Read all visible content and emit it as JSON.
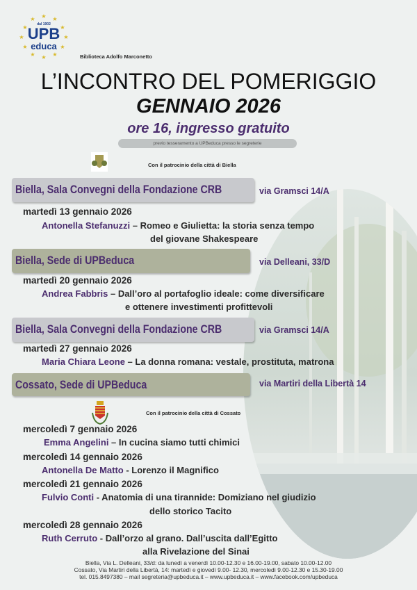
{
  "logo": {
    "since": "dal 1902",
    "line1": "UPB",
    "line2": "educa"
  },
  "library": "Biblioteca Adolfo Marconetto",
  "title": "L’INCONTRO DEL POMERIGGIO",
  "month": "GENNAIO 2026",
  "time": "ore 16, ingresso gratuito",
  "note": "previo tesseramento a UPBeduca presso le segreterie",
  "patronage_biella": "Con il patrocinio della città di Biella",
  "patronage_cossato": "Con il patrocinio della città di Cossato",
  "venues": [
    {
      "name": "Biella, Sala Convegni della Fondazione CRB",
      "address": "via Gramsci 14/A"
    },
    {
      "name": "Biella, Sede di UPBeduca",
      "address": "via  Delleani, 33/D"
    },
    {
      "name": "Biella, Sala Convegni della Fondazione CRB",
      "address": "via Gramsci 14/A"
    },
    {
      "name": "Cossato, Sede di UPBeduca",
      "address": "via  Martiri della Libertà 14"
    }
  ],
  "events": [
    {
      "date": "martedì 13 gennaio 2026",
      "speaker": "Antonella Stefanuzzi",
      "title": " – Romeo e Giulietta: la storia senza tempo",
      "title2": "del  giovane Shakespeare"
    },
    {
      "date": "martedì 20 gennaio 2026",
      "speaker": "Andrea Fabbris",
      "title": " – Dall’oro al portafoglio ideale: come diversificare",
      "title2": "e  ottenere investimenti profittevoli"
    },
    {
      "date": "martedì 27 gennaio 2026",
      "speaker": "Maria Chiara Leone",
      "title": " – La donna romana: vestale, prostituta, matrona"
    },
    {
      "date": "mercoledì 7 gennaio 2026",
      "speaker": "Emma Angelini",
      "title": " – In cucina siamo tutti chimici"
    },
    {
      "date": "mercoledì 14 gennaio 2026",
      "speaker": "Antonella De Matto",
      "title": " - Lorenzo il Magnifico"
    },
    {
      "date": "mercoledì 21 gennaio 2026",
      "speaker": "Fulvio Conti",
      "title": " - Anatomia di una tirannide: Domiziano nel giudizio",
      "title2": "dello storico Tacito"
    },
    {
      "date": "mercoledì 28 gennaio 2026",
      "speaker": "Ruth Cerruto",
      "title": " - Dall’orzo al grano. Dall’uscita dall’Egitto",
      "title2": "alla Rivelazione del Sinai"
    }
  ],
  "footer": [
    "Biella, Via L. Delleani, 33/d: da lunedì a venerdì 10.00-12.30 e 16.00-19.00, sabato 10.00-12.00",
    "Cossato, Via Martiri della Libertà, 14: martedì e giovedì 9.00- 12.30, mercoledì 9.00-12.30 e 15.30-19.00",
    "tel. 015.8497380 – mail segreteria@upbeduca.it – www.upbeduca.it – www.facebook.com/upbeduca"
  ],
  "colors": {
    "accent": "#4b2d6e",
    "logo_blue": "#1c3f8a",
    "bar_gray": "#c8c9cd",
    "bar_green": "#aeb29c",
    "background": "#eef1f0"
  }
}
